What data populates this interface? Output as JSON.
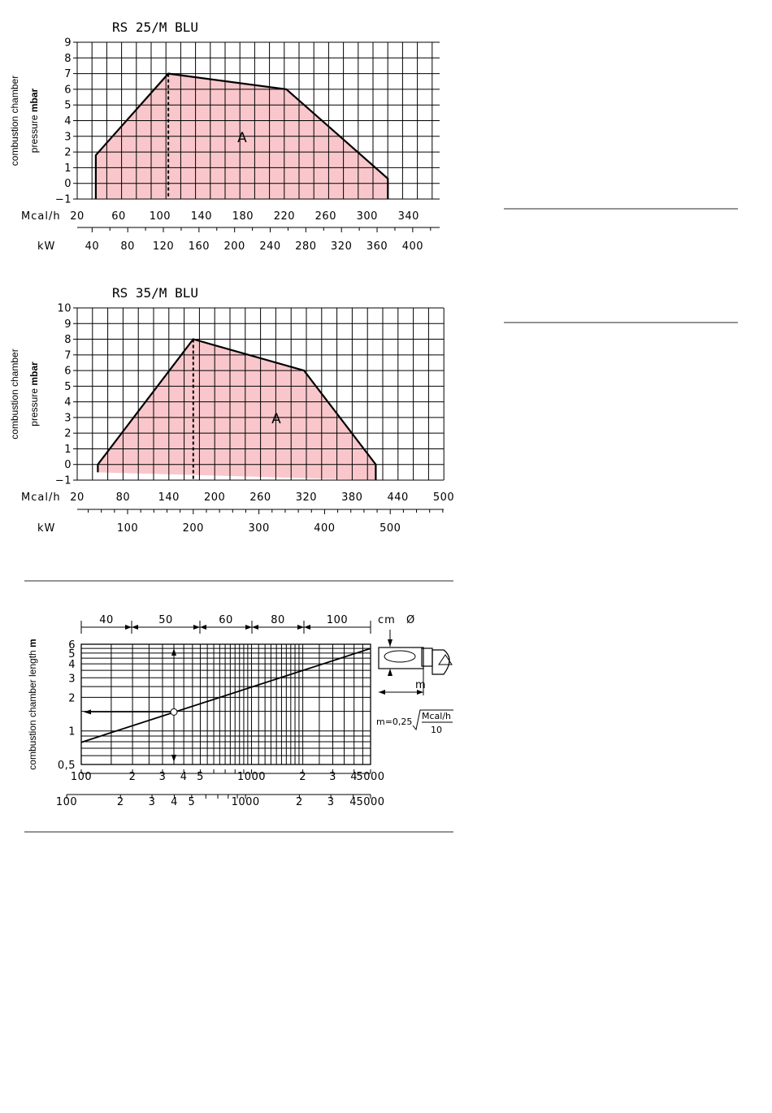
{
  "chart_data": [
    {
      "type": "area",
      "title": "RS 25/M BLU",
      "ylabel_line1": "combustion chamber",
      "ylabel_line2": "pressure",
      "ylabel_unit": "mbar",
      "xlabel": "Mcal/h",
      "secondary_xlabel": "kW",
      "xlim": [
        20,
        370
      ],
      "ylim": [
        -1,
        9
      ],
      "x_ticks": [
        20,
        60,
        100,
        140,
        180,
        220,
        260,
        300,
        340
      ],
      "y_ticks": [
        -1,
        0,
        1,
        2,
        3,
        4,
        5,
        6,
        7,
        8,
        9
      ],
      "secondary_x_ticks": [
        40,
        80,
        120,
        160,
        200,
        240,
        280,
        320,
        360,
        400
      ],
      "grid": true,
      "region_label": "A",
      "region_color": "#f9c7cb",
      "series": [
        {
          "x": [
            38,
            38,
            108,
            222,
            320,
            320
          ],
          "y": [
            -1,
            1.8,
            7,
            6,
            0.3,
            -1
          ]
        }
      ],
      "max_output_line_x": 108
    },
    {
      "type": "area",
      "title": "RS 35/M BLU",
      "ylabel_line1": "combustion chamber",
      "ylabel_line2": "pressure",
      "ylabel_unit": "mbar",
      "xlabel": "Mcal/h",
      "secondary_xlabel": "kW",
      "xlim": [
        20,
        500
      ],
      "ylim": [
        -1,
        10
      ],
      "x_ticks": [
        20,
        80,
        140,
        200,
        260,
        320,
        380,
        440,
        500
      ],
      "y_ticks": [
        -1,
        0,
        1,
        2,
        3,
        4,
        5,
        6,
        7,
        8,
        9,
        10
      ],
      "secondary_x_ticks": [
        100,
        200,
        300,
        400,
        500
      ],
      "grid": true,
      "region_label": "A",
      "region_color": "#f9c7cb",
      "series": [
        {
          "x": [
            47,
            47,
            172,
            317,
            411,
            411
          ],
          "y": [
            -0.5,
            0,
            8,
            6,
            0,
            -1
          ]
        }
      ],
      "max_output_line_x": 172
    },
    {
      "type": "line",
      "title": "",
      "ylabel_text": "combustion chamber length",
      "ylabel_unit": "m",
      "x_scale": "log",
      "y_scale": "log",
      "xlim": [
        100,
        5000
      ],
      "ylim": [
        0.5,
        6
      ],
      "x_tick_labels_top": [
        "100",
        "2",
        "3",
        "4",
        "5",
        "1000",
        "2",
        "3",
        "4",
        "5000"
      ],
      "x_tick_labels_bottom": [
        "100",
        "2",
        "3",
        "4",
        "5",
        "1000",
        "2",
        "3",
        "4",
        "5000"
      ],
      "y_tick_labels": [
        "0,5",
        "1",
        "2",
        "3",
        "4",
        "5",
        "6"
      ],
      "diameter_header": "cm",
      "diameter_symbol": "Ø",
      "diameter_bands": [
        "40",
        "50",
        "60",
        "80",
        "100"
      ],
      "length_symbol": "m",
      "formula_lhs": "m=0,25",
      "formula_num": "Mcal/h",
      "formula_den": "10",
      "series": [
        {
          "x": [
            100,
            5000
          ],
          "y": [
            0.79,
            5.5
          ]
        }
      ],
      "example_point": {
        "x": 350,
        "y": 1.48
      }
    }
  ]
}
